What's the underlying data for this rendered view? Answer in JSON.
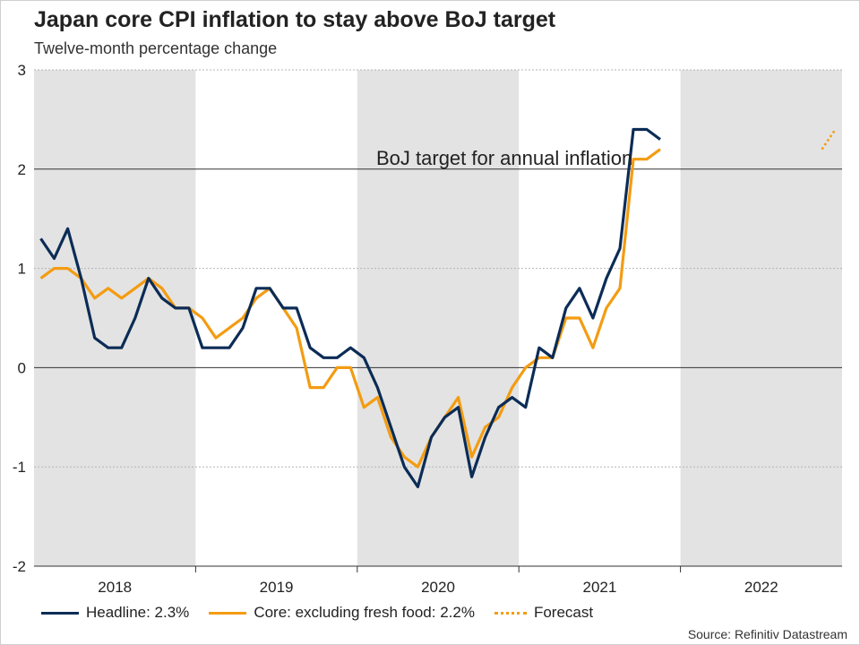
{
  "title": "Japan core CPI inflation to stay above BoJ target",
  "subtitle": "Twelve-month percentage change",
  "source": "Source: Refinitiv Datastream",
  "chart_data": {
    "type": "line",
    "ylim": [
      -2,
      3
    ],
    "yticks": [
      -2,
      -1,
      0,
      1,
      2,
      3
    ],
    "ytick_labels": [
      "-2",
      "-1",
      "0",
      "1",
      "2",
      "3"
    ],
    "x_start": "2018-01",
    "x_end": "2022-12",
    "year_labels": [
      "2018",
      "2019",
      "2020",
      "2021",
      "2022"
    ],
    "shaded_years": [
      "2018",
      "2020",
      "2022"
    ],
    "reference_line": {
      "value": 2,
      "label": "BoJ target for annual inflation"
    },
    "series": [
      {
        "name": "Headline: 2.3%",
        "color": "#0b2c56",
        "start": "2018-01",
        "values": [
          1.3,
          1.1,
          1.4,
          0.9,
          0.3,
          0.2,
          0.2,
          0.5,
          0.9,
          0.7,
          0.6,
          0.6,
          0.2,
          0.2,
          0.2,
          0.4,
          0.8,
          0.8,
          0.6,
          0.6,
          0.2,
          0.1,
          0.1,
          0.2,
          0.1,
          -0.2,
          -0.6,
          -1.0,
          -1.2,
          -0.7,
          -0.5,
          -0.4,
          -1.1,
          -0.7,
          -0.4,
          -0.3,
          -0.4,
          0.2,
          0.1,
          0.6,
          0.8,
          0.5,
          0.9,
          1.2,
          2.4,
          2.4,
          2.3
        ]
      },
      {
        "name": "Core: excluding fresh food: 2.2%",
        "color": "#f39c12",
        "start": "2018-01",
        "values": [
          0.9,
          1.0,
          1.0,
          0.9,
          0.7,
          0.8,
          0.7,
          0.8,
          0.9,
          0.8,
          0.6,
          0.6,
          0.5,
          0.3,
          0.4,
          0.5,
          0.7,
          0.8,
          0.6,
          0.4,
          -0.2,
          -0.2,
          0.0,
          0.0,
          -0.4,
          -0.3,
          -0.7,
          -0.9,
          -1.0,
          -0.7,
          -0.5,
          -0.3,
          -0.9,
          -0.6,
          -0.5,
          -0.2,
          0.0,
          0.1,
          0.1,
          0.5,
          0.5,
          0.2,
          0.6,
          0.8,
          2.1,
          2.1,
          2.2
        ]
      },
      {
        "name": "Forecast",
        "color": "#f39c12",
        "style": "dotted",
        "start": "2022-11",
        "values": [
          2.2,
          2.4
        ]
      }
    ]
  },
  "legend": {
    "headline": "Headline: 2.3%",
    "core": "Core: excluding fresh food: 2.2%",
    "forecast": "Forecast"
  }
}
